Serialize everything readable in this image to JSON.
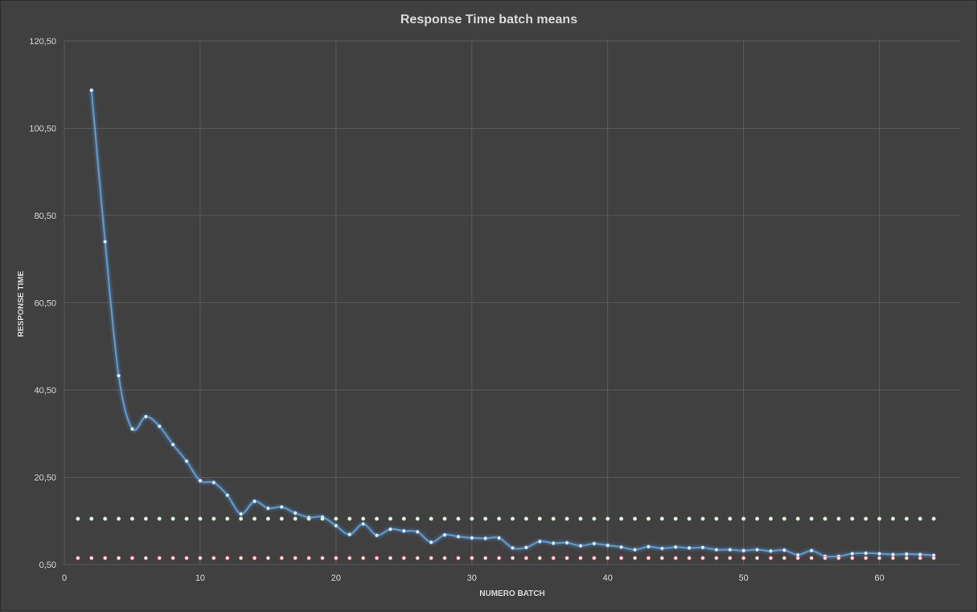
{
  "chart_data": {
    "type": "line",
    "title": "Response Time batch means",
    "xlabel": "NUMERO BATCH",
    "ylabel": "RESPONSE TIME",
    "xlim": [
      0,
      66
    ],
    "ylim": [
      0.5,
      120.5
    ],
    "x_ticks": [
      0,
      10,
      20,
      30,
      40,
      50,
      60
    ],
    "y_ticks": [
      0.5,
      20.5,
      40.5,
      60.5,
      80.5,
      100.5,
      120.5
    ],
    "y_tick_labels": [
      "0,50",
      "20,50",
      "40,50",
      "60,50",
      "80,50",
      "100,50",
      "120,50"
    ],
    "grid": true,
    "legend": "none",
    "series": [
      {
        "color": "#5b9bd5",
        "x": [
          2,
          3,
          4,
          5,
          6,
          7,
          8,
          9,
          10,
          11,
          12,
          13,
          14,
          15,
          16,
          17,
          18,
          19,
          20,
          21,
          22,
          23,
          24,
          25,
          26,
          27,
          28,
          29,
          30,
          31,
          32,
          33,
          34,
          35,
          36,
          37,
          38,
          39,
          40,
          41,
          42,
          43,
          44,
          45,
          46,
          47,
          48,
          49,
          50,
          51,
          52,
          53,
          54,
          55,
          56,
          57,
          58,
          59,
          60,
          61,
          62,
          63,
          64
        ],
        "values": [
          109.2,
          74.5,
          43.8,
          31.6,
          34.4,
          32.2,
          28.0,
          24.2,
          19.7,
          19.3,
          16.4,
          12.1,
          15.0,
          13.4,
          13.7,
          12.3,
          11.3,
          11.4,
          9.4,
          7.4,
          9.8,
          7.2,
          8.6,
          8.2,
          8.0,
          5.6,
          7.3,
          6.9,
          6.6,
          6.5,
          6.6,
          4.3,
          4.4,
          5.8,
          5.4,
          5.5,
          4.8,
          5.3,
          4.9,
          4.5,
          3.9,
          4.6,
          4.2,
          4.5,
          4.3,
          4.4,
          3.9,
          3.9,
          3.7,
          3.9,
          3.6,
          3.8,
          2.7,
          3.7,
          2.4,
          2.4,
          3.0,
          3.1,
          3.0,
          2.8,
          2.9,
          2.8,
          2.6
        ]
      },
      {
        "color": "#a9d18e",
        "x": [
          1,
          2,
          3,
          4,
          5,
          6,
          7,
          8,
          9,
          10,
          11,
          12,
          13,
          14,
          15,
          16,
          17,
          18,
          19,
          20,
          21,
          22,
          23,
          24,
          25,
          26,
          27,
          28,
          29,
          30,
          31,
          32,
          33,
          34,
          35,
          36,
          37,
          38,
          39,
          40,
          41,
          42,
          43,
          44,
          45,
          46,
          47,
          48,
          49,
          50,
          51,
          52,
          53,
          54,
          55,
          56,
          57,
          58,
          59,
          60,
          61,
          62,
          63,
          64
        ],
        "values": [
          11.0,
          11.0,
          11.0,
          11.0,
          11.0,
          11.0,
          11.0,
          11.0,
          11.0,
          11.0,
          11.0,
          11.0,
          11.0,
          11.0,
          11.0,
          11.0,
          11.0,
          11.0,
          11.0,
          11.0,
          11.0,
          11.0,
          11.0,
          11.0,
          11.0,
          11.0,
          11.0,
          11.0,
          11.0,
          11.0,
          11.0,
          11.0,
          11.0,
          11.0,
          11.0,
          11.0,
          11.0,
          11.0,
          11.0,
          11.0,
          11.0,
          11.0,
          11.0,
          11.0,
          11.0,
          11.0,
          11.0,
          11.0,
          11.0,
          11.0,
          11.0,
          11.0,
          11.0,
          11.0,
          11.0,
          11.0,
          11.0,
          11.0,
          11.0,
          11.0,
          11.0,
          11.0,
          11.0,
          11.0
        ]
      },
      {
        "color": "#ff5f5f",
        "x": [
          1,
          2,
          3,
          4,
          5,
          6,
          7,
          8,
          9,
          10,
          11,
          12,
          13,
          14,
          15,
          16,
          17,
          18,
          19,
          20,
          21,
          22,
          23,
          24,
          25,
          26,
          27,
          28,
          29,
          30,
          31,
          32,
          33,
          34,
          35,
          36,
          37,
          38,
          39,
          40,
          41,
          42,
          43,
          44,
          45,
          46,
          47,
          48,
          49,
          50,
          51,
          52,
          53,
          54,
          55,
          56,
          57,
          58,
          59,
          60,
          61,
          62,
          63,
          64
        ],
        "values": [
          2.0,
          2.0,
          2.0,
          2.0,
          2.0,
          2.0,
          2.0,
          2.0,
          2.0,
          2.0,
          2.0,
          2.0,
          2.0,
          2.0,
          2.0,
          2.0,
          2.0,
          2.0,
          2.0,
          2.0,
          2.0,
          2.0,
          2.0,
          2.0,
          2.0,
          2.0,
          2.0,
          2.0,
          2.0,
          2.0,
          2.0,
          2.0,
          2.0,
          2.0,
          2.0,
          2.0,
          2.0,
          2.0,
          2.0,
          2.0,
          2.0,
          2.0,
          2.0,
          2.0,
          2.0,
          2.0,
          2.0,
          2.0,
          2.0,
          2.0,
          2.0,
          2.0,
          2.0,
          2.0,
          2.0,
          2.0,
          2.0,
          2.0,
          2.0,
          2.0,
          2.0,
          2.0,
          2.0,
          2.0
        ]
      }
    ]
  }
}
